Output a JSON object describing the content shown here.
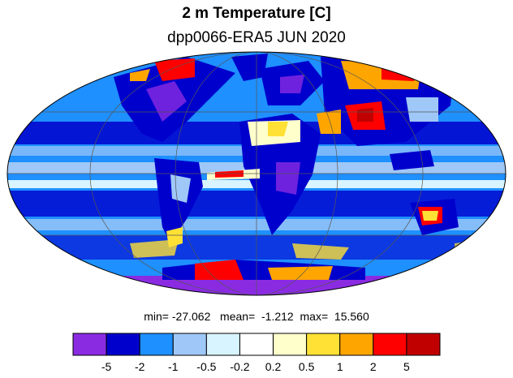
{
  "title": "2 m Temperature [C]",
  "subtitle": "dpp0066-ERA5 JUN 2020",
  "stats": {
    "min_label": "min=",
    "min": "-27.062",
    "mean_label": "mean=",
    "mean": "-1.212",
    "max_label": "max=",
    "max": "15.560"
  },
  "legend": {
    "colors": [
      "#8a2be2",
      "#0000cd",
      "#1e90ff",
      "#9fc8f8",
      "#d8f4ff",
      "#ffffff",
      "#ffffcc",
      "#ffe135",
      "#ffa500",
      "#ff0000",
      "#c00000"
    ],
    "tick_labels": [
      "-5",
      "-2",
      "-1",
      "-0.5",
      "-0.2",
      "0.2",
      "0.5",
      "1",
      "2",
      "5"
    ]
  },
  "map": {
    "projection": "mollweide",
    "ocean_base_color": "#1e90ff"
  }
}
